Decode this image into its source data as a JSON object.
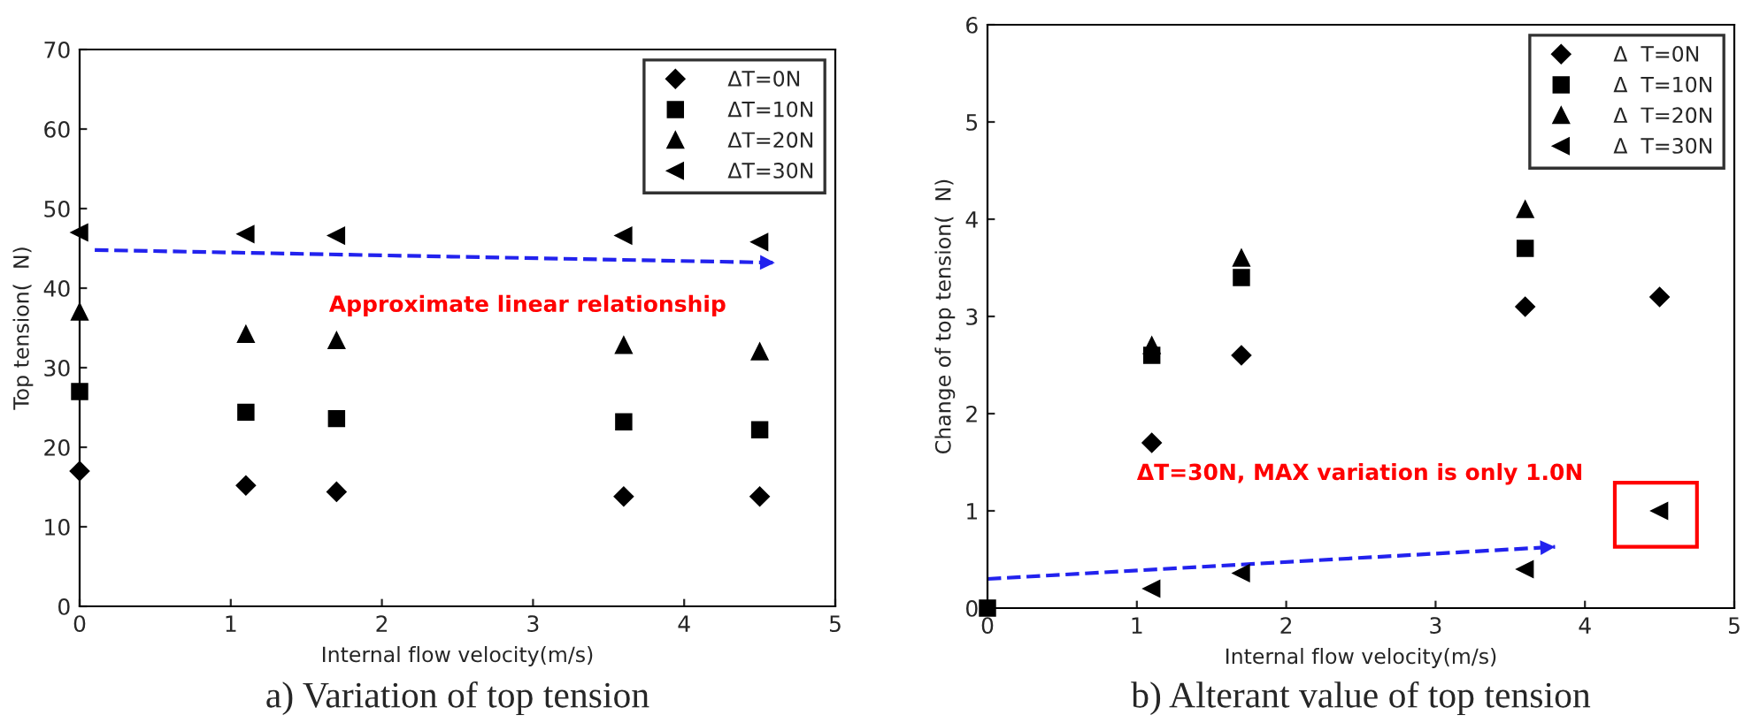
{
  "chart_data": [
    {
      "type": "scatter",
      "title": "a) Variation of top tension",
      "xlabel": "Internal flow velocity(m/s)",
      "ylabel": "Top tension(  N)",
      "xlim": [
        0,
        5
      ],
      "xticks": [
        0,
        1,
        2,
        3,
        4,
        5
      ],
      "ylim": [
        0,
        70
      ],
      "yticks": [
        0,
        10,
        20,
        30,
        40,
        50,
        60,
        70
      ],
      "grid": false,
      "legend": "top right",
      "annotations": [
        "Approximate linear relationship"
      ],
      "series": [
        {
          "name": "ΔT=0N",
          "color": "#000000",
          "marker": "diamond",
          "x": [
            0,
            1.1,
            1.7,
            3.6,
            4.5
          ],
          "values": [
            17,
            15.2,
            14.4,
            13.8,
            13.8
          ]
        },
        {
          "name": "ΔT=10N",
          "color": "#000000",
          "marker": "square",
          "x": [
            0,
            1.1,
            1.7,
            3.6,
            4.5
          ],
          "values": [
            27,
            24.4,
            23.6,
            23.2,
            22.2
          ]
        },
        {
          "name": "ΔT=20N",
          "color": "#000000",
          "marker": "triangle",
          "x": [
            0,
            1.1,
            1.7,
            3.6,
            4.5
          ],
          "values": [
            37,
            34.2,
            33.4,
            32.8,
            32.0
          ]
        },
        {
          "name": "ΔT=30N",
          "color": "#000000",
          "marker": "triangle-left",
          "x": [
            0,
            1.1,
            1.7,
            3.6,
            4.5
          ],
          "values": [
            47,
            46.8,
            46.6,
            46.6,
            45.8
          ]
        },
        {
          "type": "line",
          "color": "#2222ee",
          "line_style": "dashed",
          "marker": "none",
          "x": [
            0.1,
            4.6
          ],
          "values": [
            44.8,
            43.2
          ]
        }
      ]
    },
    {
      "type": "scatter",
      "title": "b) Alterant value of top tension",
      "xlabel": "Internal flow velocity(m/s)",
      "ylabel": "Change of top tension(  N)",
      "xlim": [
        0,
        5
      ],
      "xticks": [
        0,
        1,
        2,
        3,
        4,
        5
      ],
      "ylim": [
        0,
        6
      ],
      "yticks": [
        0,
        1,
        2,
        3,
        4,
        5,
        6
      ],
      "grid": false,
      "legend": "top right",
      "annotations": [
        "ΔT=30N, MAX variation is only 1.0N"
      ],
      "series": [
        {
          "name": "Δ  T=0N",
          "color": "#000000",
          "marker": "diamond",
          "x": [
            1.1,
            1.7,
            3.6,
            4.5
          ],
          "values": [
            1.7,
            2.6,
            3.1,
            3.2
          ]
        },
        {
          "name": "Δ  T=10N",
          "color": "#000000",
          "marker": "square",
          "x": [
            0,
            1.1,
            1.7,
            3.6
          ],
          "values": [
            0,
            2.6,
            3.4,
            3.7
          ]
        },
        {
          "name": "Δ  T=20N",
          "color": "#000000",
          "marker": "triangle",
          "x": [
            1.1,
            1.7,
            3.6
          ],
          "values": [
            2.7,
            3.6,
            4.1
          ]
        },
        {
          "name": "Δ  T=30N",
          "color": "#000000",
          "marker": "triangle-left",
          "x": [
            1.1,
            1.7,
            3.6,
            4.5
          ],
          "values": [
            0.2,
            0.36,
            0.4,
            1.0
          ]
        },
        {
          "type": "line",
          "color": "#2222ee",
          "line_style": "dashed",
          "marker": "none",
          "x": [
            0,
            3.8
          ],
          "values": [
            0.3,
            0.63
          ]
        }
      ]
    }
  ]
}
